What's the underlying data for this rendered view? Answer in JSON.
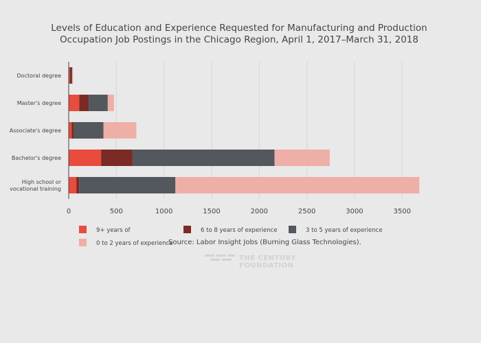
{
  "chart_data": {
    "type": "bar",
    "orientation": "horizontal",
    "stacked": true,
    "title_lines": [
      "Levels of Education and Experience Requested for Manufacturing and Production",
      "Occupation Job Postings in the Chicago Region, April 1, 2017–March 31, 2018"
    ],
    "categories": [
      "Doctoral degree",
      "Master's degree",
      "Associate's degree",
      "Bachelor's degree",
      "High school or vocational training"
    ],
    "category_lines": [
      [
        "Doctoral degree"
      ],
      [
        "Master's degree"
      ],
      [
        "Associate's degree"
      ],
      [
        "Bachelor's degree"
      ],
      [
        "High school or",
        "vocational training"
      ]
    ],
    "series": [
      {
        "name": "9+ years of",
        "color": "#e84c3d",
        "values": [
          12,
          110,
          30,
          340,
          80
        ]
      },
      {
        "name": "6 to 8 years of experience",
        "color": "#7b2a26",
        "values": [
          20,
          100,
          25,
          330,
          30
        ]
      },
      {
        "name": "3 to 5 years of experience",
        "color": "#53575e",
        "values": [
          5,
          200,
          310,
          1490,
          1010
        ]
      },
      {
        "name": "0 to 2 years of experience",
        "color": "#eeafa8",
        "values": [
          8,
          65,
          345,
          580,
          2560
        ]
      }
    ],
    "xlim": [
      0,
      3700
    ],
    "xticks": [
      0,
      500,
      1000,
      1500,
      2000,
      2500,
      3000,
      3500
    ],
    "grid": true,
    "legend_position": "bottom",
    "source": "Source: Labor Insight Jobs (Burning Glass Technologies).",
    "logo_text": [
      "THE CENTURY",
      "FOUNDATION"
    ]
  }
}
